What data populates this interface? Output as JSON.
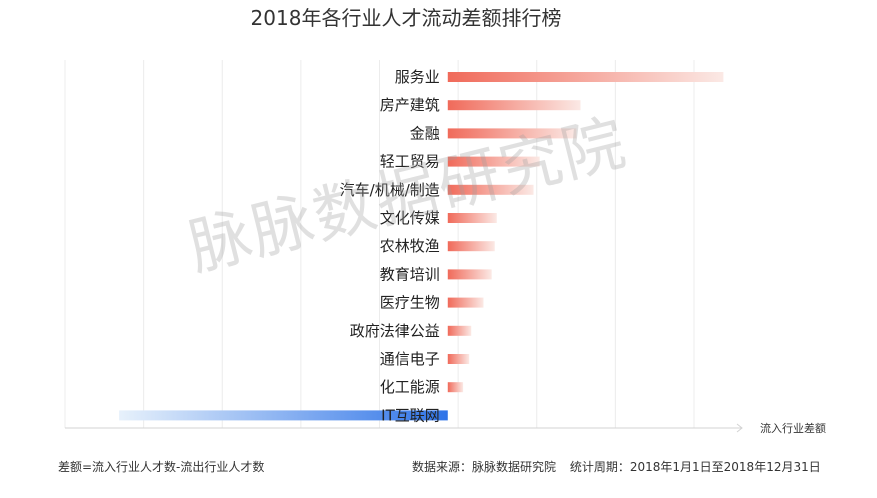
{
  "chart_data": {
    "type": "bar",
    "orientation": "horizontal",
    "title": "2018年各行业人才流动差额排行榜",
    "xlabel": "流入行业差额",
    "categories": [
      "服务业",
      "房产建筑",
      "金融",
      "轻工贸易",
      "汽车/机械/制造",
      "文化传媒",
      "农林牧渔",
      "教育培训",
      "医疗生物",
      "政府法律公益",
      "通信电子",
      "化工能源",
      "IT互联网"
    ],
    "values": [
      270,
      130,
      126,
      90,
      84,
      48,
      46,
      43,
      35,
      23,
      21,
      15,
      -322
    ],
    "xlim": [
      -375,
      300
    ],
    "grid": true,
    "colors": {
      "positive": "#f06a5a",
      "negative": "#2f74e8"
    }
  },
  "watermark": "脉脉数据研究院",
  "footnote": "差额=流入行业人才数-流出行业人才数",
  "source": "数据来源：脉脉数据研究院",
  "period": "统计周期：2018年1月1日至2018年12月31日"
}
